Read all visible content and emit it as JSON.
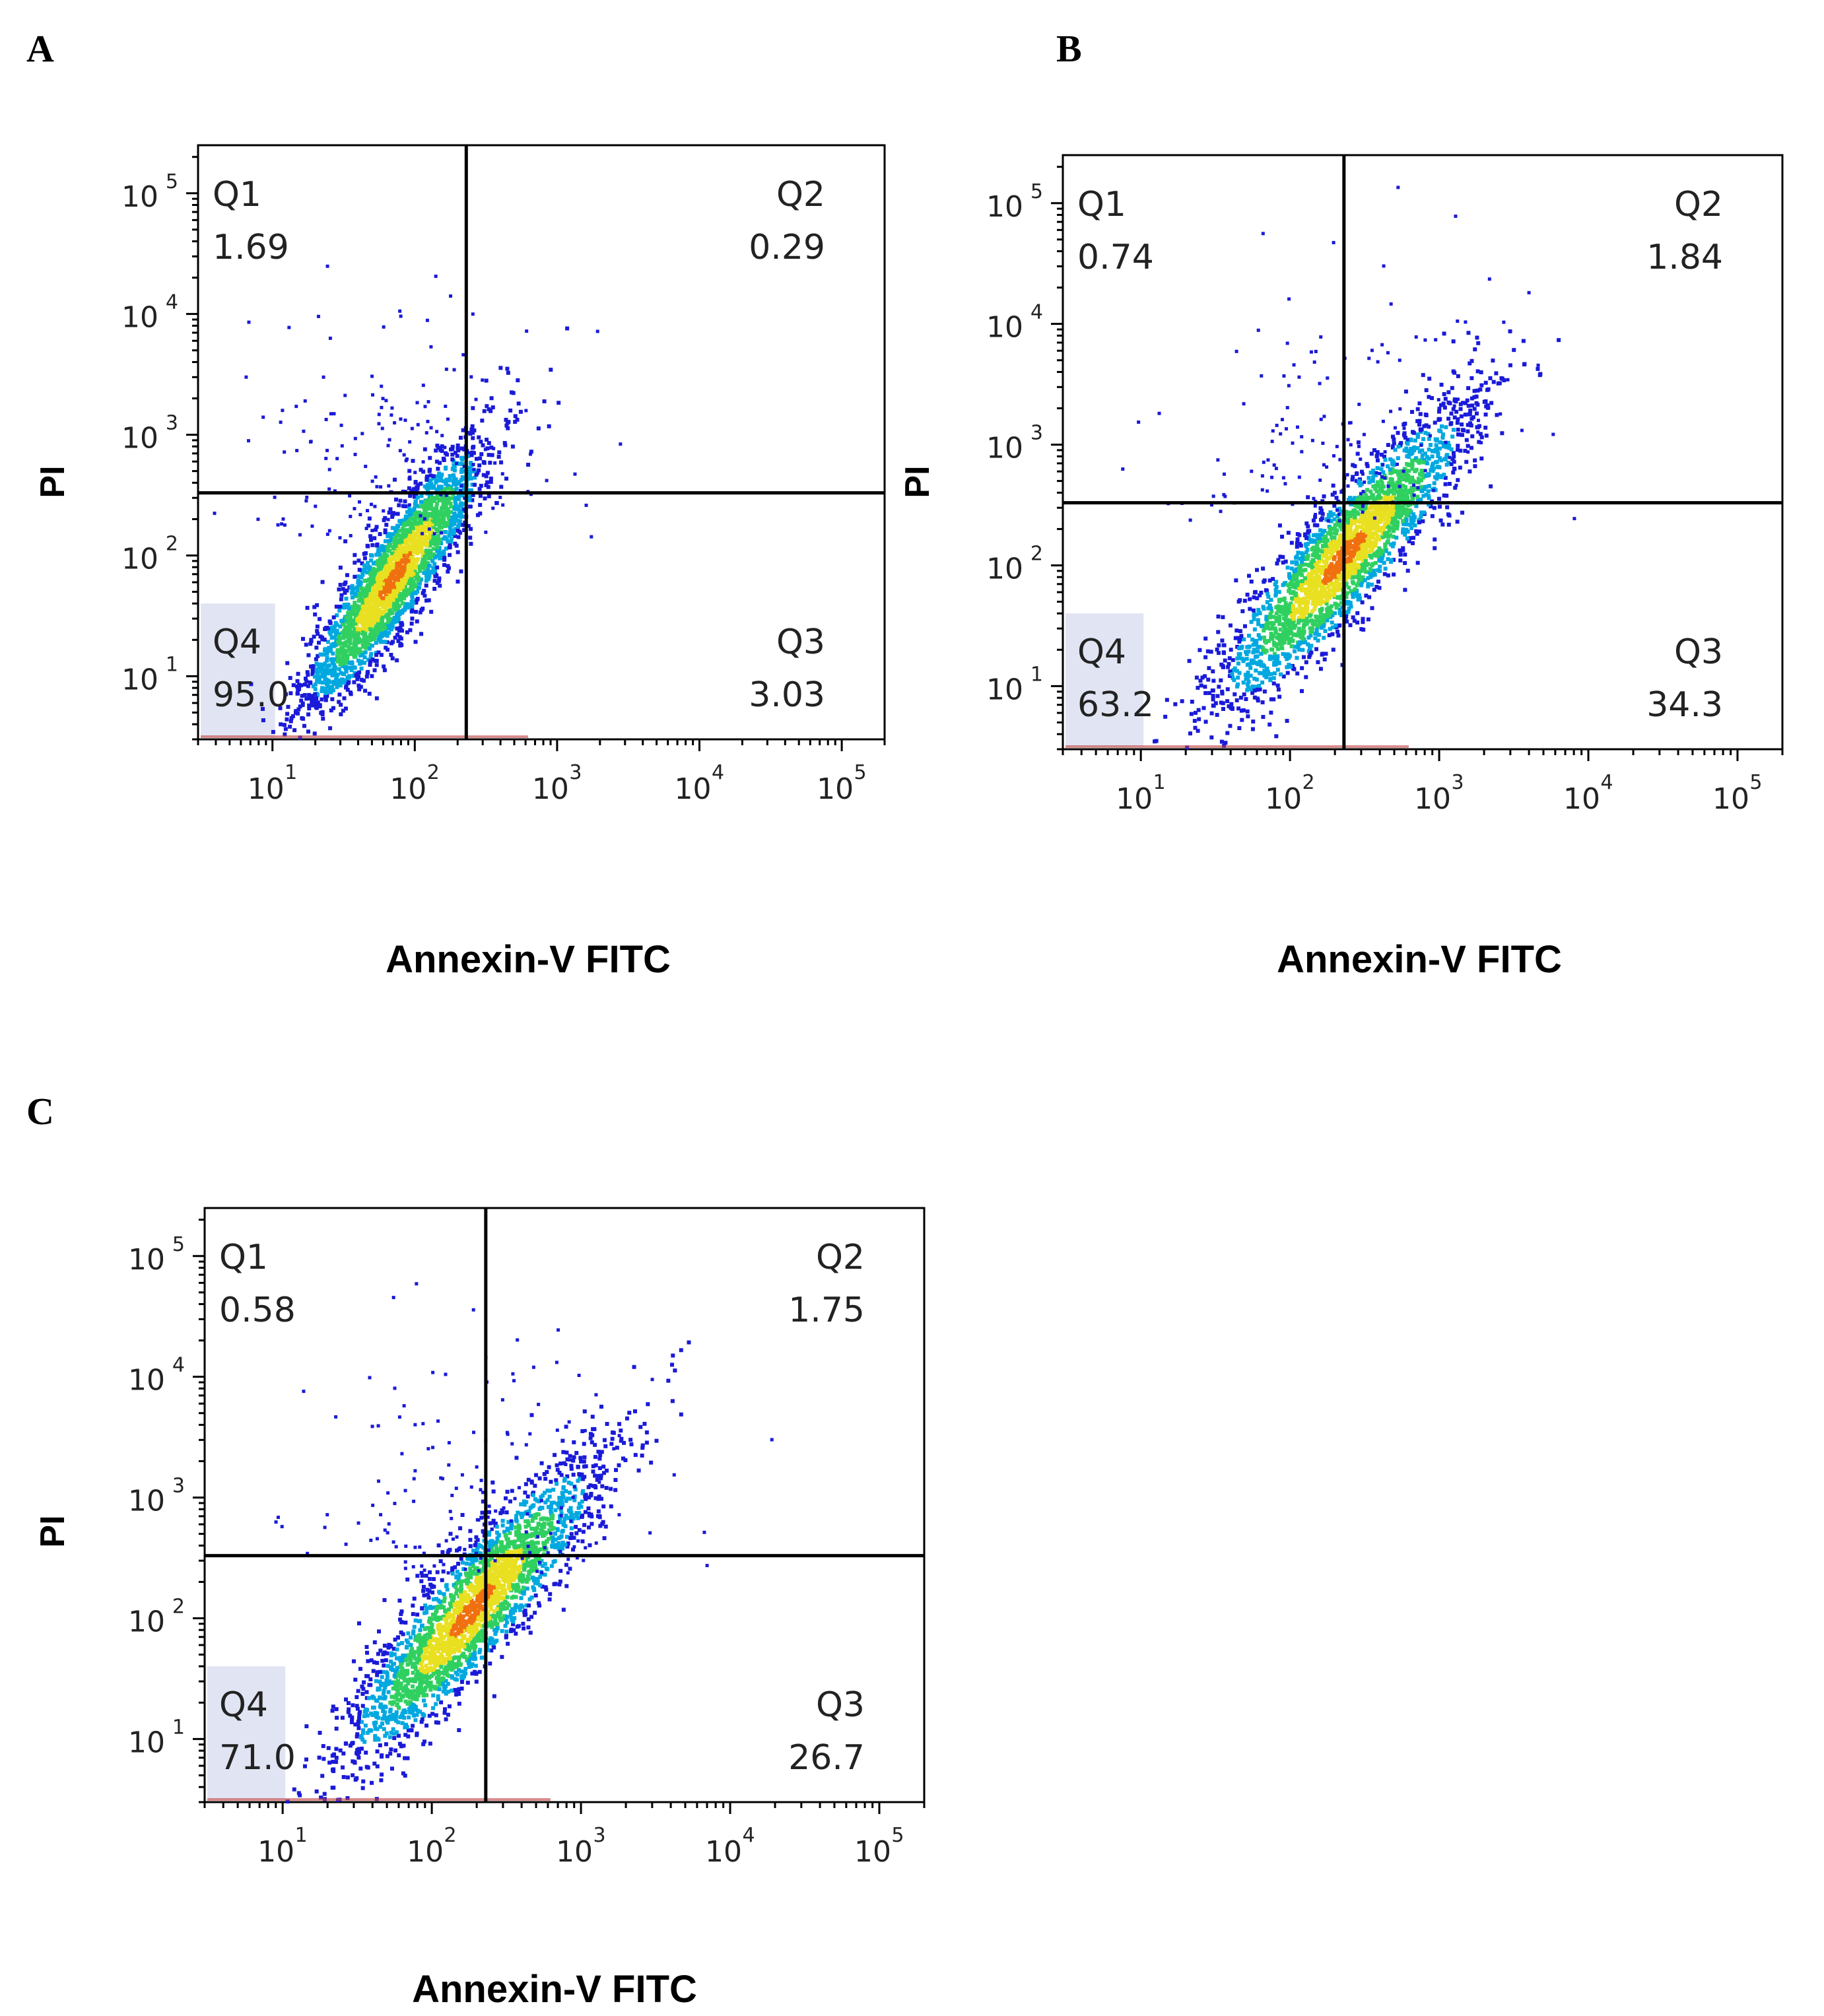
{
  "panels": [
    {
      "letter": "A",
      "xlabel": "Annexin-V FITC",
      "ylabel": "PI"
    },
    {
      "letter": "B",
      "xlabel": "Annexin-V FITC",
      "ylabel": "PI"
    },
    {
      "letter": "C",
      "xlabel": "Annexin-V FITC",
      "ylabel": "PI"
    }
  ],
  "chart_data": [
    {
      "type": "scatter",
      "panel": "A",
      "xlabel": "Annexin-V FITC",
      "ylabel": "PI",
      "x_scale": "log",
      "y_scale": "log",
      "xlim": [
        3,
        200000
      ],
      "ylim": [
        3,
        250000
      ],
      "x_ticks": [
        "10^1",
        "10^2",
        "10^3",
        "10^4",
        "10^5"
      ],
      "y_ticks": [
        "10^1",
        "10^2",
        "10^3",
        "10^4",
        "10^5"
      ],
      "gate": {
        "x": 230,
        "y": 330
      },
      "quadrants": [
        {
          "name": "Q1",
          "value": "1.69"
        },
        {
          "name": "Q2",
          "value": "0.29"
        },
        {
          "name": "Q3",
          "value": "3.03"
        },
        {
          "name": "Q4",
          "value": "95.0"
        }
      ],
      "population_center": {
        "x": 70,
        "y": 70
      },
      "colormap": [
        "#1a1ad8",
        "#00a8e0",
        "#30d060",
        "#e8e020",
        "#f07010"
      ]
    },
    {
      "type": "scatter",
      "panel": "B",
      "xlabel": "Annexin-V FITC",
      "ylabel": "PI",
      "x_scale": "log",
      "y_scale": "log",
      "xlim": [
        3,
        200000
      ],
      "ylim": [
        3,
        250000
      ],
      "x_ticks": [
        "10^1",
        "10^2",
        "10^3",
        "10^4",
        "10^5"
      ],
      "y_ticks": [
        "10^1",
        "10^2",
        "10^3",
        "10^4",
        "10^5"
      ],
      "gate": {
        "x": 230,
        "y": 330
      },
      "quadrants": [
        {
          "name": "Q1",
          "value": "0.74"
        },
        {
          "name": "Q2",
          "value": "1.84"
        },
        {
          "name": "Q3",
          "value": "34.3"
        },
        {
          "name": "Q4",
          "value": "63.2"
        }
      ],
      "population_center": {
        "x": 220,
        "y": 120
      },
      "colormap": [
        "#1a1ad8",
        "#00a8e0",
        "#30d060",
        "#e8e020",
        "#f07010"
      ]
    },
    {
      "type": "scatter",
      "panel": "C",
      "xlabel": "Annexin-V FITC",
      "ylabel": "PI",
      "x_scale": "log",
      "y_scale": "log",
      "xlim": [
        3,
        200000
      ],
      "ylim": [
        3,
        250000
      ],
      "x_ticks": [
        "10^1",
        "10^2",
        "10^3",
        "10^4",
        "10^5"
      ],
      "y_ticks": [
        "10^1",
        "10^2",
        "10^3",
        "10^4",
        "10^5"
      ],
      "gate": {
        "x": 230,
        "y": 330
      },
      "quadrants": [
        {
          "name": "Q1",
          "value": "0.58"
        },
        {
          "name": "Q2",
          "value": "1.75"
        },
        {
          "name": "Q3",
          "value": "26.7"
        },
        {
          "name": "Q4",
          "value": "71.0"
        }
      ],
      "population_center": {
        "x": 180,
        "y": 120
      },
      "colormap": [
        "#1a1ad8",
        "#00a8e0",
        "#30d060",
        "#e8e020",
        "#f07010"
      ]
    }
  ]
}
